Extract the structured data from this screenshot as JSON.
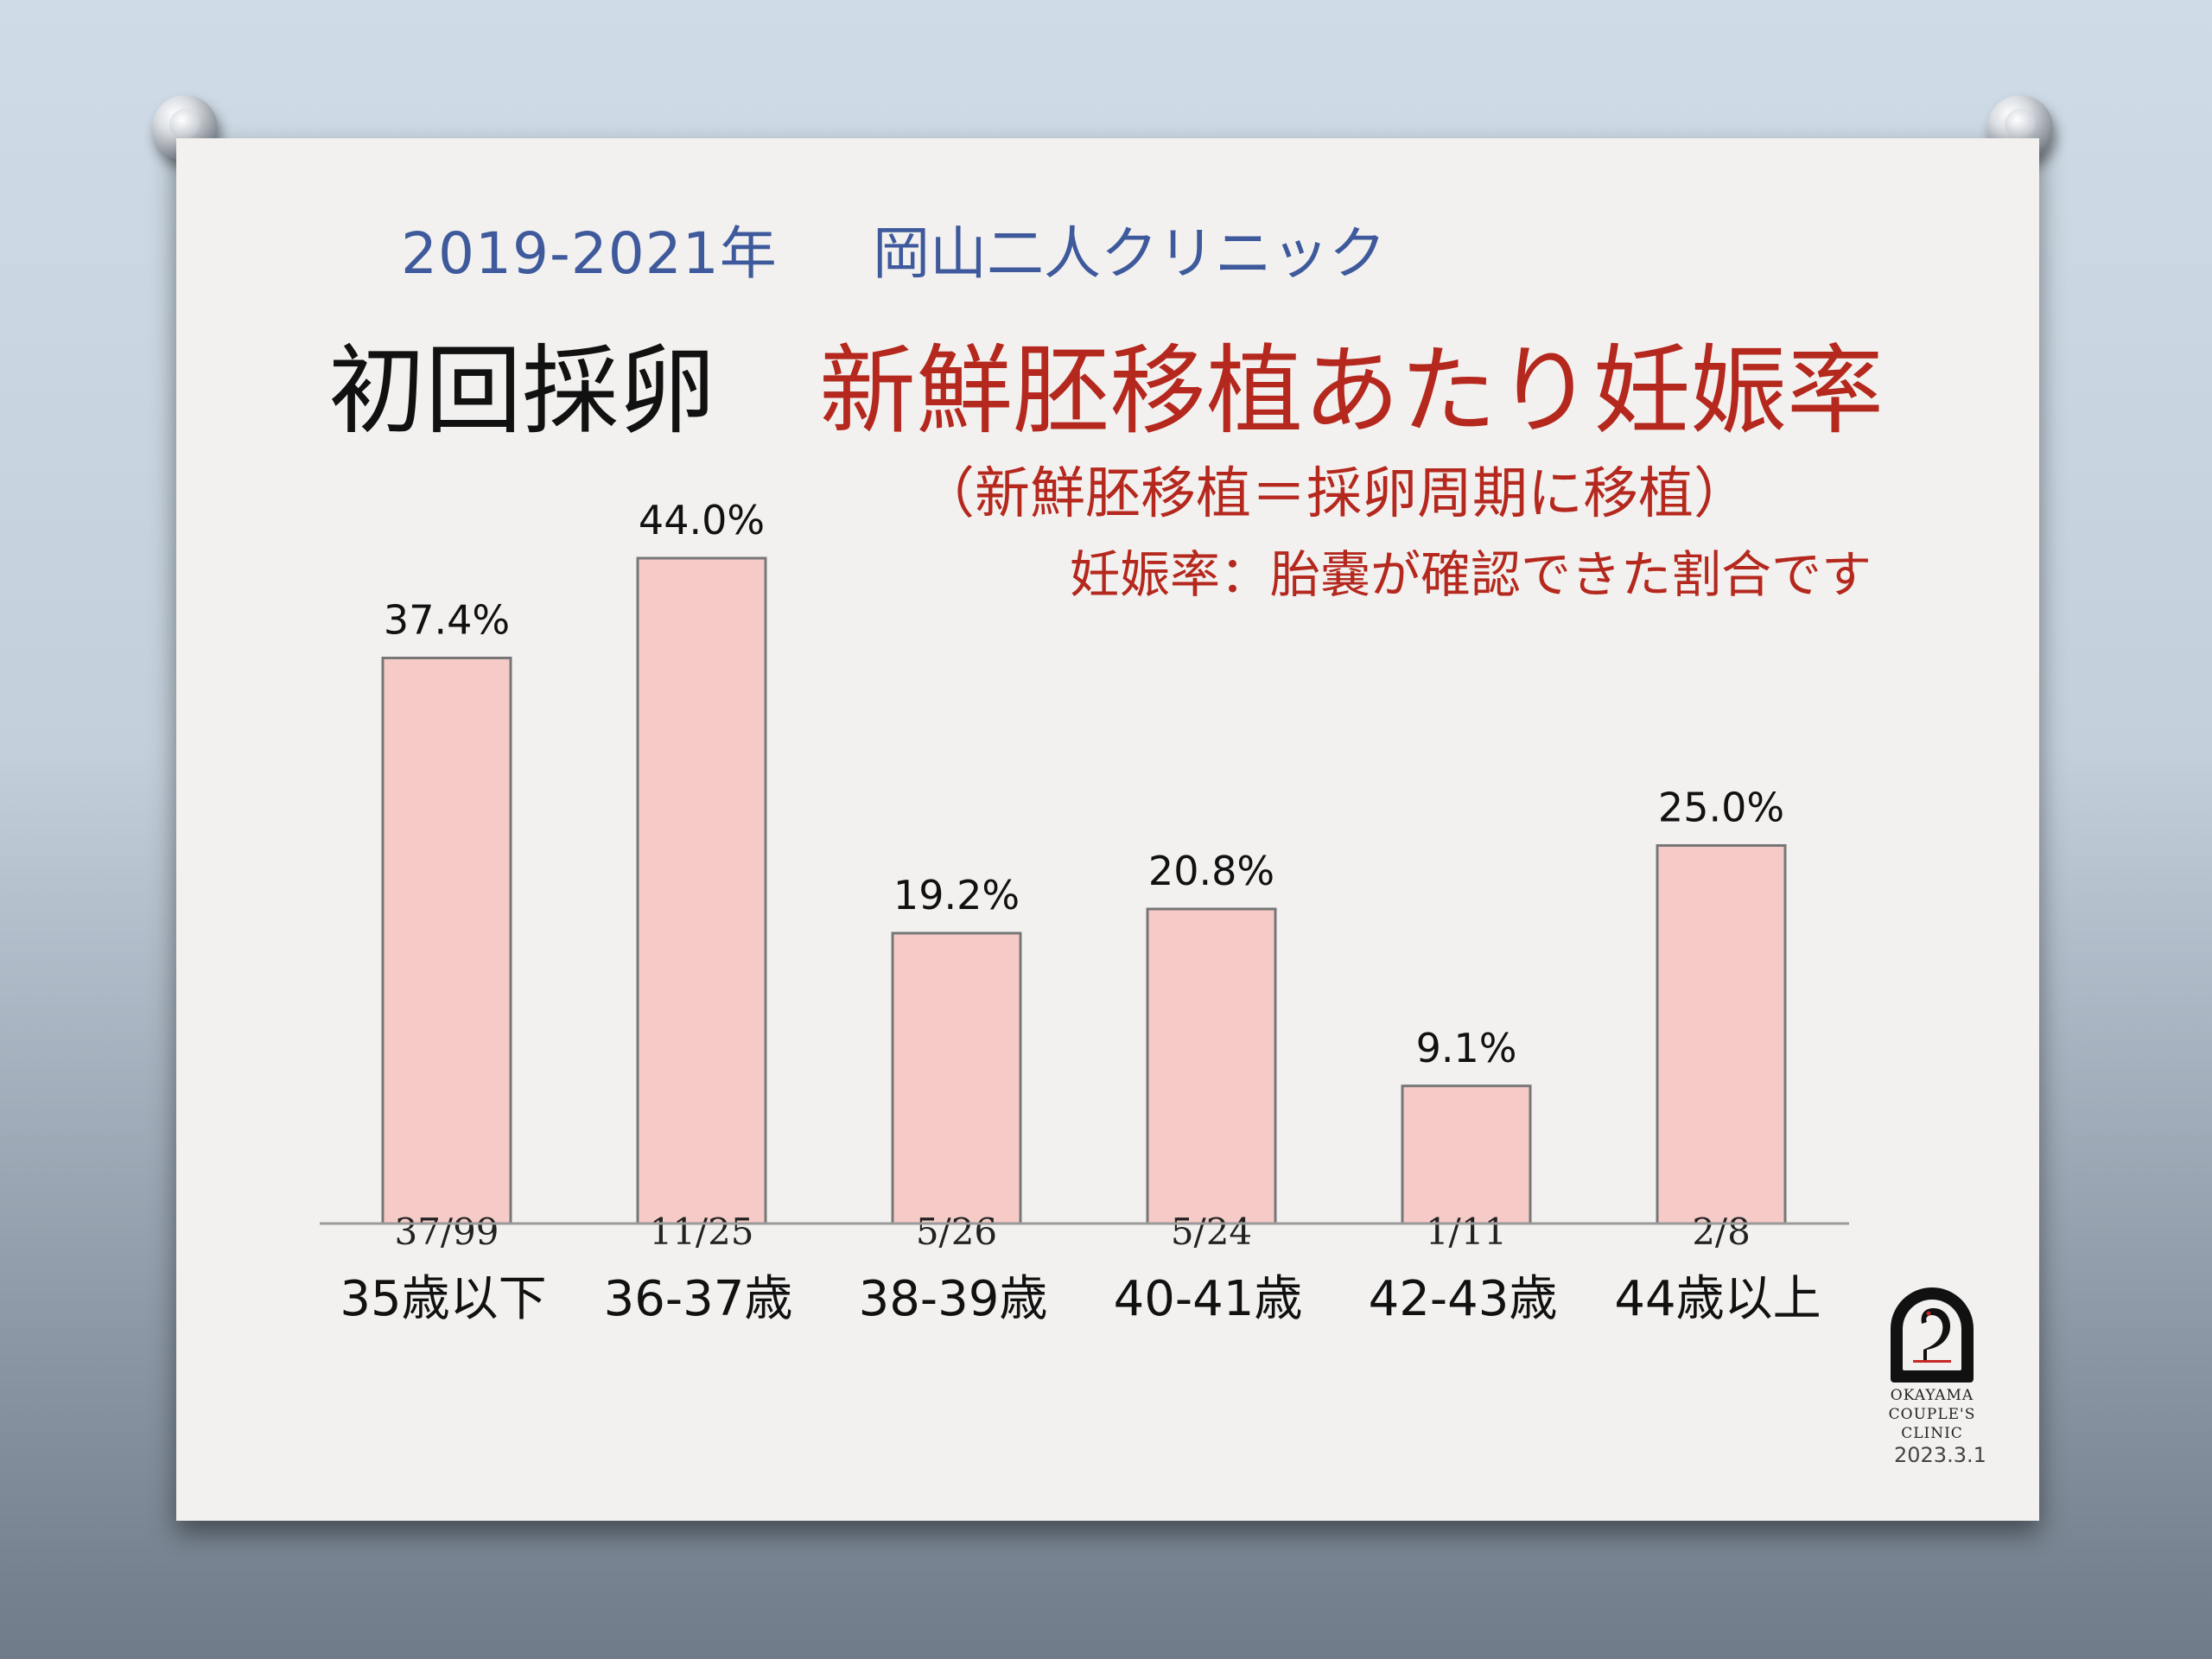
{
  "subtitle": "2019-2021年",
  "clinic_name": "岡山二人クリニック",
  "title_prefix": "初回採卵",
  "title_main": "新鮮胚移植あたり妊娠率",
  "note_definition": "（新鮮胚移植＝採卵周期に移植）",
  "note_rate": "妊娠率：胎嚢が確認できた割合です",
  "logo": {
    "lines": [
      "OKAYAMA",
      "COUPLE'S",
      "CLINIC"
    ]
  },
  "date": "2023.3.1",
  "colors": {
    "bar_fill": "#f6cbc7",
    "bar_stroke": "#777777",
    "title_red": "#b5281e",
    "subtitle_blue": "#3e5a9c"
  },
  "chart_data": {
    "type": "bar",
    "title": "",
    "xlabel": "",
    "ylabel": "",
    "ylim": [
      0,
      50
    ],
    "categories": [
      "35歳以下",
      "36-37歳",
      "38-39歳",
      "40-41歳",
      "42-43歳",
      "44歳以上"
    ],
    "values": [
      37.4,
      44.0,
      19.2,
      20.8,
      9.1,
      25.0
    ],
    "value_labels": [
      "37.4%",
      "44.0%",
      "19.2%",
      "20.8%",
      "9.1%",
      "25.0%"
    ],
    "counts": [
      "37/99",
      "11/25",
      "5/26",
      "5/24",
      "1/11",
      "2/8"
    ],
    "grid": false,
    "legend": "none"
  }
}
